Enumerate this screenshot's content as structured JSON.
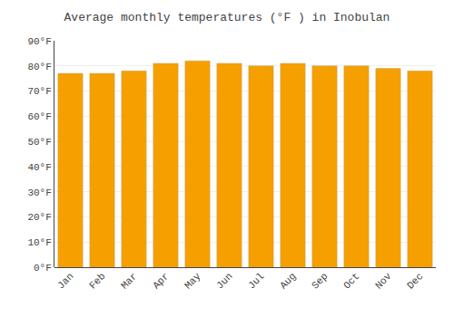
{
  "chart_data": {
    "type": "bar",
    "title": "Average monthly temperatures (°F ) in Inobulan",
    "categories": [
      "Jan",
      "Feb",
      "Mar",
      "Apr",
      "May",
      "Jun",
      "Jul",
      "Aug",
      "Sep",
      "Oct",
      "Nov",
      "Dec"
    ],
    "values": [
      77.0,
      77.0,
      78.0,
      81.0,
      82.0,
      81.0,
      80.0,
      81.0,
      80.0,
      80.0,
      79.0,
      78.0
    ],
    "color": "#F5A000",
    "ylim": [
      0,
      90
    ],
    "yticks": [
      {
        "value": 0,
        "label": "0°F"
      },
      {
        "value": 10,
        "label": "10°F"
      },
      {
        "value": 20,
        "label": "20°F"
      },
      {
        "value": 30,
        "label": "30°F"
      },
      {
        "value": 40,
        "label": "40°F"
      },
      {
        "value": 50,
        "label": "50°F"
      },
      {
        "value": 60,
        "label": "60°F"
      },
      {
        "value": 70,
        "label": "70°F"
      },
      {
        "value": 80,
        "label": "80°F"
      },
      {
        "value": 90,
        "label": "90°F"
      }
    ],
    "grid": true
  }
}
